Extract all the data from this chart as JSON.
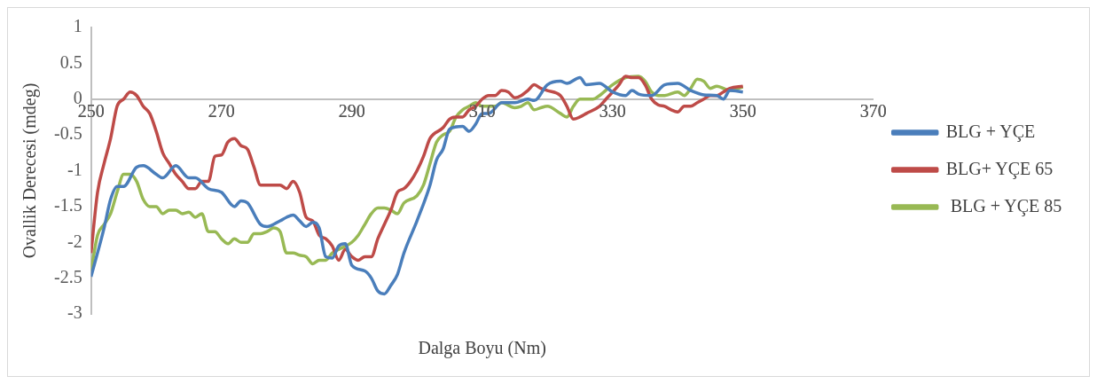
{
  "chart_data": {
    "type": "line",
    "xlabel": "Dalga Boyu (Nm)",
    "ylabel": "Ovallik Derecesi (mdeg)",
    "xlim": [
      250,
      370
    ],
    "xticks": [
      250,
      270,
      290,
      310,
      330,
      350,
      370
    ],
    "ylim": [
      -3,
      1
    ],
    "yticks": [
      -3,
      -2.5,
      -2,
      -1.5,
      -1,
      -0.5,
      0,
      0.5,
      1
    ],
    "grid": false,
    "legend": "right",
    "marker": "none",
    "line_style": "solid",
    "series": [
      {
        "name": "BLG + YÇE",
        "color": "#4a7ebb",
        "x": [
          250,
          252,
          253,
          254,
          255,
          257,
          258,
          260,
          261,
          263,
          265,
          266,
          268,
          270,
          272,
          273,
          274,
          276,
          277,
          279,
          280,
          281,
          282,
          283,
          284,
          285,
          286,
          287,
          288,
          289,
          290,
          292,
          293,
          294,
          295,
          296,
          297,
          298,
          300,
          302,
          303,
          304,
          305,
          307,
          308,
          309,
          310,
          311,
          313,
          315,
          317,
          318,
          320,
          322,
          323,
          325,
          326,
          328,
          330,
          332,
          333,
          334,
          336,
          338,
          340,
          342,
          344,
          346,
          347,
          348,
          350
        ],
        "values": [
          -2.48,
          -1.8,
          -1.4,
          -1.22,
          -1.22,
          -0.95,
          -0.93,
          -1.05,
          -1.1,
          -0.93,
          -1.1,
          -1.1,
          -1.25,
          -1.3,
          -1.5,
          -1.42,
          -1.45,
          -1.75,
          -1.78,
          -1.7,
          -1.65,
          -1.62,
          -1.7,
          -1.78,
          -1.72,
          -1.8,
          -2.2,
          -2.22,
          -2.05,
          -2.02,
          -2.32,
          -2.4,
          -2.5,
          -2.68,
          -2.72,
          -2.6,
          -2.45,
          -2.15,
          -1.7,
          -1.2,
          -0.85,
          -0.7,
          -0.42,
          -0.38,
          -0.45,
          -0.35,
          -0.2,
          -0.2,
          -0.05,
          -0.05,
          0,
          -0.02,
          0.2,
          0.25,
          0.22,
          0.3,
          0.2,
          0.22,
          0.1,
          0.05,
          0.12,
          0.07,
          0.05,
          0.2,
          0.22,
          0.12,
          0.06,
          0.05,
          0,
          0.12,
          0.1
        ]
      },
      {
        "name": "BLG+ YÇE 65",
        "color": "#be4b48",
        "x": [
          250,
          251,
          252,
          253,
          254,
          255,
          256,
          257,
          258,
          259,
          260,
          261,
          262,
          263,
          264,
          265,
          266,
          267,
          268,
          269,
          270,
          271,
          272,
          273,
          274,
          275,
          276,
          277,
          279,
          280,
          281,
          282,
          283,
          284,
          285,
          286,
          287,
          288,
          289,
          290,
          291,
          292,
          293,
          294,
          295,
          296,
          297,
          298,
          299,
          300,
          301,
          302,
          304,
          305,
          306,
          307,
          308,
          309,
          310,
          311,
          312,
          313,
          314,
          315,
          316,
          317,
          318,
          319,
          320,
          322,
          323,
          324,
          325,
          326,
          328,
          329,
          331,
          332,
          333,
          334,
          335,
          336,
          337,
          338,
          339,
          340,
          341,
          342,
          343,
          344,
          345,
          346,
          347,
          348,
          350
        ],
        "values": [
          -2.15,
          -1.3,
          -0.9,
          -0.55,
          -0.1,
          0,
          0.1,
          0.05,
          -0.1,
          -0.2,
          -0.45,
          -0.75,
          -0.9,
          -1.05,
          -1.15,
          -1.25,
          -1.25,
          -1.15,
          -1.15,
          -0.8,
          -0.78,
          -0.6,
          -0.55,
          -0.65,
          -0.7,
          -0.95,
          -1.2,
          -1.2,
          -1.2,
          -1.25,
          -1.15,
          -1.3,
          -1.65,
          -1.7,
          -1.9,
          -1.95,
          -2.05,
          -2.25,
          -2.1,
          -2.2,
          -2.25,
          -2.2,
          -2.2,
          -1.95,
          -1.75,
          -1.55,
          -1.3,
          -1.25,
          -1.15,
          -1,
          -0.8,
          -0.55,
          -0.4,
          -0.28,
          -0.25,
          -0.25,
          -0.15,
          -0.1,
          0,
          0.05,
          0.05,
          0.12,
          0.1,
          0.02,
          0.05,
          0.12,
          0.2,
          0.15,
          0.12,
          0.05,
          -0.1,
          -0.28,
          -0.25,
          -0.2,
          -0.1,
          0,
          0.2,
          0.32,
          0.3,
          0.3,
          0.2,
          0,
          -0.08,
          -0.1,
          -0.15,
          -0.18,
          -0.1,
          -0.1,
          -0.05,
          0,
          0.05,
          0.05,
          0.1,
          0.15,
          0.18
        ]
      },
      {
        "name": " BLG + YÇE 85",
        "color": "#98b954",
        "x": [
          250,
          251,
          252,
          253,
          254,
          255,
          256,
          257,
          258,
          259,
          260,
          261,
          262,
          263,
          264,
          265,
          266,
          267,
          268,
          269,
          270,
          271,
          272,
          273,
          274,
          275,
          276,
          277,
          278,
          279,
          280,
          281,
          282,
          283,
          284,
          285,
          286,
          287,
          288,
          290,
          291,
          292,
          293,
          294,
          295,
          296,
          297,
          298,
          300,
          301,
          302,
          303,
          304,
          305,
          306,
          307,
          308,
          309,
          310,
          312,
          313,
          315,
          316,
          317,
          318,
          319,
          320,
          322,
          323,
          324,
          325,
          327,
          328,
          330,
          332,
          334,
          335,
          336,
          337,
          338,
          340,
          341,
          342,
          343,
          344,
          345,
          346,
          348,
          350
        ],
        "values": [
          -2.4,
          -1.9,
          -1.75,
          -1.6,
          -1.3,
          -1.05,
          -1.05,
          -1.15,
          -1.4,
          -1.5,
          -1.5,
          -1.6,
          -1.55,
          -1.55,
          -1.6,
          -1.58,
          -1.65,
          -1.6,
          -1.85,
          -1.85,
          -1.95,
          -2.02,
          -1.95,
          -2,
          -2,
          -1.88,
          -1.88,
          -1.85,
          -1.8,
          -1.85,
          -2.15,
          -2.15,
          -2.18,
          -2.2,
          -2.3,
          -2.25,
          -2.25,
          -2.15,
          -2.1,
          -2,
          -1.9,
          -1.75,
          -1.6,
          -1.52,
          -1.52,
          -1.55,
          -1.6,
          -1.45,
          -1.35,
          -1.2,
          -0.9,
          -0.6,
          -0.5,
          -0.45,
          -0.25,
          -0.15,
          -0.1,
          -0.05,
          -0.1,
          -0.1,
          -0.05,
          -0.12,
          -0.1,
          -0.05,
          -0.15,
          -0.12,
          -0.1,
          -0.2,
          -0.25,
          -0.1,
          0,
          0,
          0.05,
          0.2,
          0.3,
          0.32,
          0.25,
          0.1,
          0.05,
          0.05,
          0.1,
          0.05,
          0.15,
          0.28,
          0.25,
          0.15,
          0.18,
          0.12,
          0.17
        ]
      }
    ]
  }
}
